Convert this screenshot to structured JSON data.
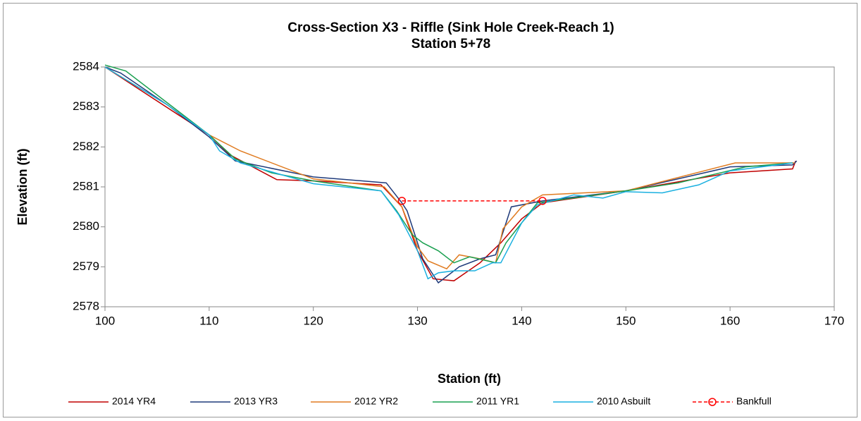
{
  "chart_data": {
    "type": "line",
    "title": "Cross-Section X3 - Riffle (Sink Hole Creek-Reach 1)",
    "subtitle": "Station 5+78",
    "x_label": "Station (ft)",
    "y_label": "Elevation (ft)",
    "xlim": [
      100,
      170
    ],
    "xticks": [
      100,
      110,
      120,
      130,
      140,
      150,
      160,
      170
    ],
    "ylim": [
      2578,
      2584
    ],
    "yticks": [
      2578,
      2579,
      2580,
      2581,
      2582,
      2583,
      2584
    ],
    "grid": false,
    "legend": "bottom",
    "series": [
      {
        "name": "2014 YR4",
        "color": "#c00000",
        "x": [
          100,
          110,
          112,
          116.5,
          120,
          126.5,
          128.5,
          130,
          131.5,
          133.5,
          136,
          138,
          140,
          142,
          150,
          160,
          166,
          166.3
        ],
        "values": [
          2584,
          2582.3,
          2581.8,
          2581.18,
          2581.15,
          2581.05,
          2580.5,
          2579.4,
          2578.7,
          2578.65,
          2579.1,
          2579.6,
          2580.2,
          2580.6,
          2580.9,
          2581.35,
          2581.45,
          2581.65
        ]
      },
      {
        "name": "2013 YR3",
        "color": "#1f3a7a",
        "x": [
          100,
          101.5,
          106,
          110,
          112.5,
          120,
          127,
          128.5,
          129,
          130.5,
          132,
          134,
          136,
          137.5,
          139,
          142,
          150,
          160,
          166,
          166.4
        ],
        "values": [
          2584,
          2583.85,
          2583.05,
          2582.25,
          2581.65,
          2581.25,
          2581.1,
          2580.6,
          2580.4,
          2579.2,
          2578.6,
          2579.0,
          2579.2,
          2579.3,
          2580.5,
          2580.65,
          2580.9,
          2581.5,
          2581.55,
          2581.65
        ]
      },
      {
        "name": "2012 YR2",
        "color": "#e07b20",
        "x": [
          100,
          106,
          110,
          113,
          120,
          126.8,
          128.5,
          130,
          131,
          132.8,
          134,
          136,
          137.5,
          138.2,
          140,
          142,
          150,
          160.5,
          166.2
        ],
        "values": [
          2584,
          2583.05,
          2582.3,
          2581.9,
          2581.2,
          2581.0,
          2580.5,
          2579.5,
          2579.15,
          2578.95,
          2579.3,
          2579.2,
          2579.1,
          2579.95,
          2580.5,
          2580.8,
          2580.9,
          2581.6,
          2581.6
        ]
      },
      {
        "name": "2011 YR1",
        "color": "#1aa050",
        "x": [
          100,
          102,
          106,
          110,
          112.5,
          116,
          120,
          126.5,
          128,
          129.5,
          130.5,
          132,
          133.5,
          135,
          137.5,
          138.5,
          140,
          141.5,
          150,
          155,
          161.5,
          166
        ],
        "values": [
          2584.05,
          2583.9,
          2583.1,
          2582.3,
          2581.7,
          2581.35,
          2581.15,
          2580.9,
          2580.4,
          2579.8,
          2579.6,
          2579.4,
          2579.1,
          2579.25,
          2579.1,
          2579.6,
          2580.1,
          2580.6,
          2580.9,
          2581.1,
          2581.5,
          2581.6
        ]
      },
      {
        "name": "2010 Asbuilt",
        "color": "#1ab0e0",
        "x": [
          100,
          106,
          110,
          111,
          113,
          117,
          120,
          126.5,
          128.2,
          130,
          131,
          132,
          133.5,
          135.5,
          137.2,
          138,
          138.6,
          140,
          141.5,
          145,
          147.8,
          150,
          153.5,
          157,
          160,
          166
        ],
        "values": [
          2584,
          2583.05,
          2582.3,
          2581.9,
          2581.6,
          2581.3,
          2581.08,
          2580.9,
          2580.3,
          2579.4,
          2578.7,
          2578.85,
          2578.9,
          2578.9,
          2579.1,
          2579.1,
          2579.4,
          2580.1,
          2580.55,
          2580.8,
          2580.72,
          2580.88,
          2580.85,
          2581.05,
          2581.4,
          2581.6
        ]
      },
      {
        "name": "Bankfull",
        "color": "#ff0000",
        "dashed": true,
        "marker": "circle",
        "x": [
          128.5,
          142
        ],
        "values": [
          2580.65,
          2580.65
        ]
      }
    ]
  }
}
